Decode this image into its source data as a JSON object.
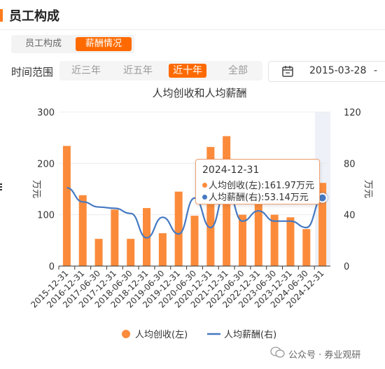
{
  "header": {
    "title": "员工构成"
  },
  "tabs": {
    "items": [
      "员工构成",
      "薪酬情况"
    ],
    "active": "薪酬情况"
  },
  "range": {
    "label": "时间范围",
    "options": [
      "近三年",
      "近五年",
      "近十年",
      "全部"
    ],
    "active": "近十年"
  },
  "date_picker": {
    "date": "2015-03-28",
    "separator": "-"
  },
  "tooltip": {
    "date": "2024-12-31",
    "revenue_text": "人均创收(左):161.97万元",
    "salary_text": "人均薪酬(右):53.14万元"
  },
  "watermark": "公众号 · 券业观研",
  "colors": {
    "accent": "#ff6a00",
    "bar": "#fb8b3b",
    "line": "#4579c2"
  },
  "chart_data": {
    "type": "bar",
    "title": "人均创收和人均薪酬",
    "categories": [
      "2015-12-31",
      "2016-12-31",
      "2017-06-30",
      "2017-12-31",
      "2018-06-30",
      "2018-12-31",
      "2019-06-30",
      "2019-12-31",
      "2020-06-30",
      "2020-12-31",
      "2021-12-31",
      "2022-06-30",
      "2022-12-31",
      "2023-06-30",
      "2023-12-31",
      "2024-06-30",
      "2024-12-31"
    ],
    "series": [
      {
        "name": "人均创收(左)",
        "type": "bar",
        "axis": "left",
        "values": [
          234,
          138,
          53,
          110,
          53,
          113,
          64,
          145,
          98,
          232,
          253,
          100,
          195,
          100,
          95,
          72,
          161.97
        ]
      },
      {
        "name": "人均薪酬(右)",
        "type": "line",
        "axis": "right",
        "values": [
          61,
          50,
          46,
          45,
          41,
          22,
          38,
          25,
          53,
          30,
          60,
          35,
          43,
          35,
          35,
          30,
          53.14
        ]
      }
    ],
    "ylabel_left": "万元",
    "ylabel_right": "万元",
    "ylim_left": [
      0,
      300
    ],
    "ylim_right": [
      0,
      120
    ],
    "yticks_left": [
      "0",
      "100",
      "200",
      "300"
    ],
    "yticks_right": [
      "0",
      "40",
      "80",
      "120"
    ],
    "legend": [
      "人均创收(左)",
      "人均薪酬(右)"
    ],
    "legend_position": "bottom",
    "highlighted_category": "2024-12-31",
    "grid": true
  }
}
